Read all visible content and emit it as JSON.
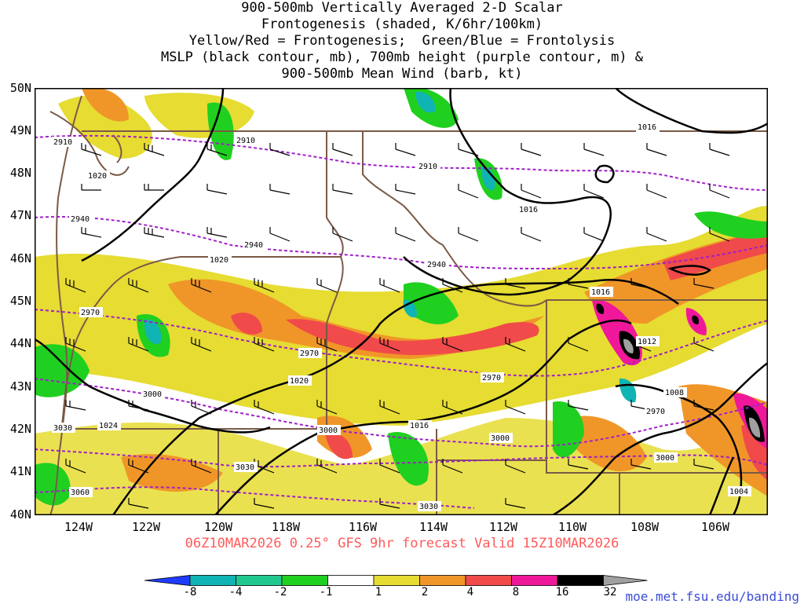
{
  "title_lines": [
    "900-500mb Vertically Averaged 2-D Scalar",
    "Frontogenesis (shaded, K/6hr/100km)",
    "Yellow/Red = Frontogenesis;  Green/Blue = Frontolysis",
    "MSLP (black contour, mb), 700mb height (purple contour, m) &",
    "900-500mb Mean Wind (barb, kt)"
  ],
  "lat_labels": [
    "50N",
    "49N",
    "48N",
    "47N",
    "46N",
    "45N",
    "44N",
    "43N",
    "42N",
    "41N",
    "40N"
  ],
  "lon_labels": [
    "124W",
    "122W",
    "120W",
    "118W",
    "116W",
    "114W",
    "112W",
    "110W",
    "108W",
    "106W"
  ],
  "valid_line": "06Z10MAR2026 0.25° GFS 9hr forecast Valid 15Z10MAR2026",
  "colorbar": {
    "labels": [
      "-8",
      "-4",
      "-2",
      "-1",
      "1",
      "2",
      "4",
      "8",
      "16",
      "32"
    ],
    "colors": [
      "#1e3cff",
      "#10b4b4",
      "#20c890",
      "#20d020",
      "#ffffff",
      "#e6dc32",
      "#f09628",
      "#f04a4a",
      "#f0189a",
      "#000000",
      "#a0a0a0"
    ]
  },
  "mslp_labels": [
    "1016",
    "1020",
    "1016",
    "1020",
    "1016",
    "1012",
    "1020",
    "1008",
    "1016",
    "1024",
    "1004"
  ],
  "height_labels": [
    "2910",
    "2910",
    "2910",
    "2940",
    "2940",
    "2940",
    "2970",
    "2970",
    "2970",
    "3000",
    "3000",
    "3000",
    "3000",
    "2970",
    "3030",
    "3030",
    "3060",
    "3030"
  ],
  "site_url": "moe.met.fsu.edu/banding",
  "colors": {
    "mslp": "#000000",
    "height": "#a020c8",
    "borders": "#7a5a46",
    "title": "#000000",
    "valid": "#ff5a5a"
  }
}
